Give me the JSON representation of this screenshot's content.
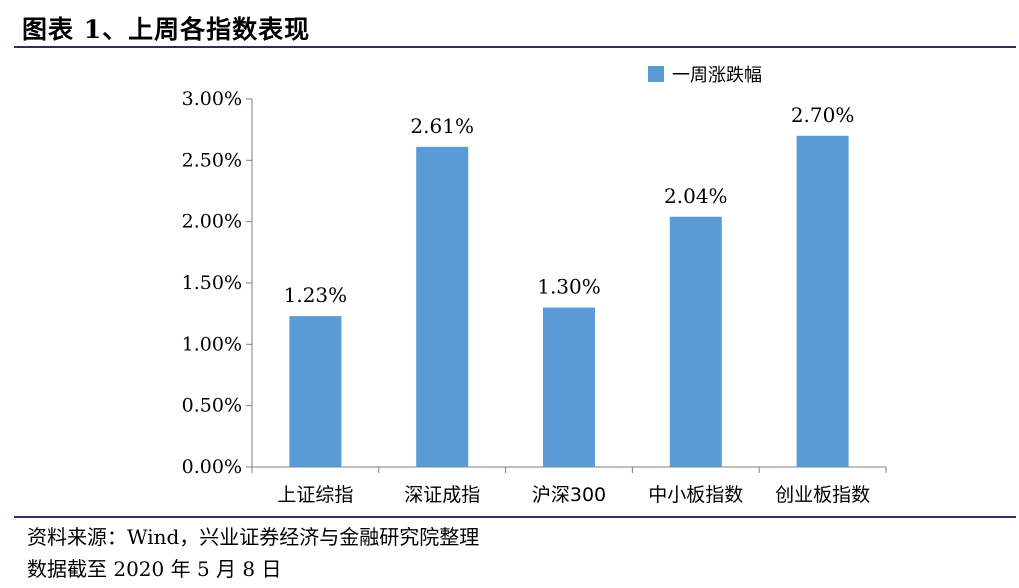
{
  "figure": {
    "title": "图表 1、上周各指数表现",
    "source": "资料来源：Wind，兴业证券经济与金融研究院整理",
    "date": "数据截至 2020 年 5 月 8 日"
  },
  "colors": {
    "bar": "#5b9bd5",
    "rule": "#2b2d6b",
    "axis": "#7f7f7f"
  },
  "chart_data": {
    "type": "bar",
    "categories": [
      "上证综指",
      "深证成指",
      "沪深300",
      "中小板指数",
      "创业板指数"
    ],
    "series": [
      {
        "name": "一周涨跌幅",
        "values": [
          1.23,
          2.61,
          1.3,
          2.04,
          2.7
        ]
      }
    ],
    "data_labels": [
      "1.23%",
      "2.61%",
      "1.30%",
      "2.04%",
      "2.70%"
    ],
    "yticks": [
      "0.00%",
      "0.50%",
      "1.00%",
      "1.50%",
      "2.00%",
      "2.50%",
      "3.00%"
    ],
    "ylim": [
      0,
      3
    ],
    "grid": false,
    "legend_position": "top-right"
  }
}
